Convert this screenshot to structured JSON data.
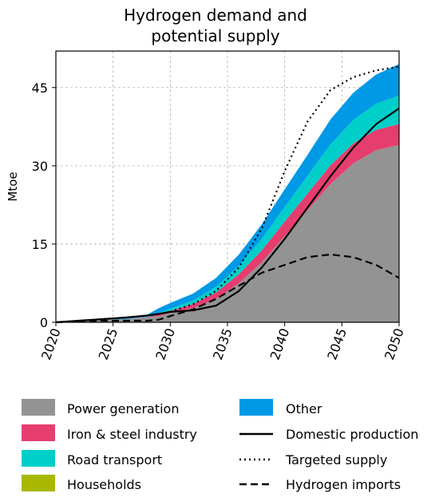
{
  "chart_data": {
    "type": "area",
    "title": [
      "Hydrogen demand and",
      "potential supply"
    ],
    "xlabel": "",
    "ylabel": "Mtoe",
    "xlim": [
      2020,
      2050
    ],
    "ylim": [
      0,
      52
    ],
    "xticks": [
      "2020",
      "2025",
      "2030",
      "2035",
      "2040",
      "2045",
      "2050"
    ],
    "yticks": [
      "0",
      "15",
      "30",
      "45"
    ],
    "grid": true,
    "x": [
      2020,
      2022,
      2024,
      2026,
      2028,
      2029,
      2030,
      2032,
      2034,
      2036,
      2038,
      2040,
      2042,
      2044,
      2046,
      2048,
      2050
    ],
    "stacked_series": [
      {
        "name": "Power generation",
        "color": "#939393",
        "values": [
          0,
          0.2,
          0.4,
          0.6,
          0.9,
          1.2,
          1.8,
          2.7,
          4.5,
          7.5,
          11.5,
          16.5,
          21.5,
          26.5,
          30.5,
          33,
          34
        ]
      },
      {
        "name": "Iron & steel industry",
        "color": "#e63d6f",
        "values": [
          0,
          0,
          0,
          0,
          0.1,
          0.3,
          0.4,
          0.8,
          1.2,
          1.7,
          2.3,
          2.8,
          3.2,
          3.6,
          3.8,
          3.9,
          4
        ]
      },
      {
        "name": "Road transport",
        "color": "#00cfc9",
        "values": [
          0,
          0,
          0,
          0,
          0.1,
          0.3,
          0.4,
          0.7,
          1.1,
          1.6,
          2.2,
          2.8,
          3.4,
          4,
          4.5,
          5,
          5.5
        ]
      },
      {
        "name": "Households",
        "color": "#a8b800",
        "values": [
          0,
          0,
          0,
          0,
          0,
          0,
          0,
          0,
          0,
          0,
          0,
          0,
          0,
          0,
          0,
          0,
          0
        ]
      },
      {
        "name": "Other",
        "color": "#0099e6",
        "values": [
          0,
          0,
          0,
          0.1,
          0.4,
          0.9,
          1.1,
          1.3,
          1.7,
          2.2,
          2.8,
          3.4,
          4,
          4.8,
          5.2,
          5.6,
          6
        ]
      }
    ],
    "line_series": [
      {
        "name": "Domestic production",
        "style": "solid",
        "values": [
          0,
          0.3,
          0.6,
          0.9,
          1.3,
          1.6,
          2,
          2.3,
          3.2,
          6,
          10.5,
          16,
          22,
          28,
          33.5,
          38,
          41
        ]
      },
      {
        "name": "Targeted supply",
        "style": "dotted",
        "values": [
          0,
          0.3,
          0.6,
          0.9,
          1.3,
          1.6,
          2,
          3.5,
          6,
          10.5,
          18,
          29,
          38.5,
          44.5,
          47,
          48.3,
          49
        ]
      },
      {
        "name": "Hydrogen imports",
        "style": "dashed",
        "values": [
          0,
          0.2,
          0.3,
          0.3,
          0.3,
          0.5,
          1.2,
          2.5,
          4.5,
          7,
          9.5,
          11,
          12.5,
          13,
          12.5,
          11,
          8.5
        ]
      }
    ],
    "legend": {
      "placement": "bottom",
      "columns": [
        [
          "Power generation",
          "Iron & steel industry",
          "Road transport",
          "Households"
        ],
        [
          "Other",
          "Domestic production",
          "Targeted supply",
          "Hydrogen imports"
        ]
      ]
    }
  }
}
